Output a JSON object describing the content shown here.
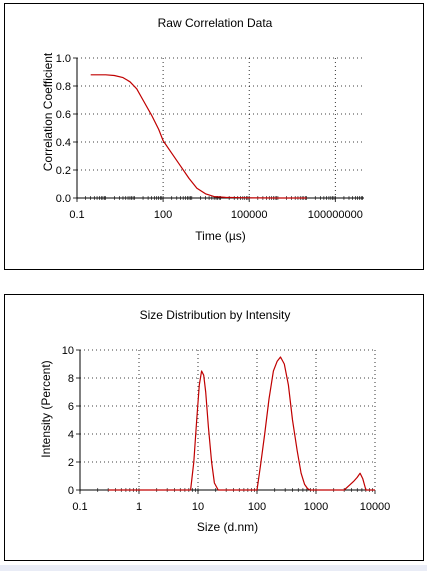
{
  "colors": {
    "series": "#c00000",
    "grid": "#000000",
    "border": "#000000"
  },
  "chart_data": [
    {
      "type": "line",
      "title": "Raw Correlation Data",
      "xlabel": "Time (µs)",
      "ylabel": "Correlation Coefficient",
      "xscale": "log",
      "xlim": [
        0.1,
        1000000000
      ],
      "ylim": [
        0.0,
        1.0
      ],
      "grid": true,
      "xticks": [
        0.1,
        100,
        100000,
        100000000
      ],
      "xtick_labels": [
        "0.1",
        "100",
        "100000",
        "100000000"
      ],
      "yticks": [
        0.0,
        0.2,
        0.4,
        0.6,
        0.8,
        1.0
      ],
      "ytick_labels": [
        "0.0",
        "0.2",
        "0.4",
        "0.6",
        "0.8",
        "1.0"
      ],
      "series": [
        {
          "x": [
            0.3,
            0.6,
            1,
            2,
            4,
            7,
            12,
            20,
            40,
            70,
            100,
            200,
            400,
            800,
            1500,
            3000,
            6000,
            15000,
            50000,
            200000,
            1000000,
            10000000
          ],
          "y": [
            0.88,
            0.88,
            0.88,
            0.875,
            0.86,
            0.83,
            0.78,
            0.7,
            0.59,
            0.49,
            0.41,
            0.32,
            0.23,
            0.14,
            0.07,
            0.03,
            0.01,
            0.004,
            0.002,
            0.001,
            0.0,
            0.0
          ]
        }
      ]
    },
    {
      "type": "line",
      "title": "Size Distribution by Intensity",
      "xlabel": "Size (d.nm)",
      "ylabel": "Intensity (Percent)",
      "xscale": "log",
      "xlim": [
        0.1,
        10000
      ],
      "ylim": [
        0,
        10
      ],
      "grid": true,
      "xticks": [
        0.1,
        1,
        10,
        100,
        1000,
        10000
      ],
      "xtick_labels": [
        "0.1",
        "1",
        "10",
        "100",
        "1000",
        "10000"
      ],
      "yticks": [
        0,
        2,
        4,
        6,
        8,
        10
      ],
      "ytick_labels": [
        "0",
        "2",
        "4",
        "6",
        "8",
        "10"
      ],
      "series": [
        {
          "x": [
            0.3,
            7.5,
            8.5,
            9.5,
            10.5,
            11.5,
            12.5,
            13.5,
            15,
            17,
            19,
            22,
            100,
            115,
            135,
            160,
            190,
            220,
            250,
            290,
            340,
            400,
            480,
            560,
            640,
            720,
            800,
            3000,
            3600,
            4300,
            5000,
            5600,
            6200,
            7000,
            10000
          ],
          "y": [
            0,
            0,
            2.0,
            5.0,
            7.5,
            8.5,
            8.2,
            7.0,
            4.5,
            2.0,
            0.5,
            0,
            0,
            1.8,
            4.0,
            6.5,
            8.5,
            9.2,
            9.5,
            9.0,
            7.5,
            5.0,
            2.8,
            1.2,
            0.4,
            0.1,
            0,
            0,
            0.3,
            0.6,
            0.9,
            1.2,
            0.8,
            0,
            0
          ]
        }
      ]
    }
  ]
}
